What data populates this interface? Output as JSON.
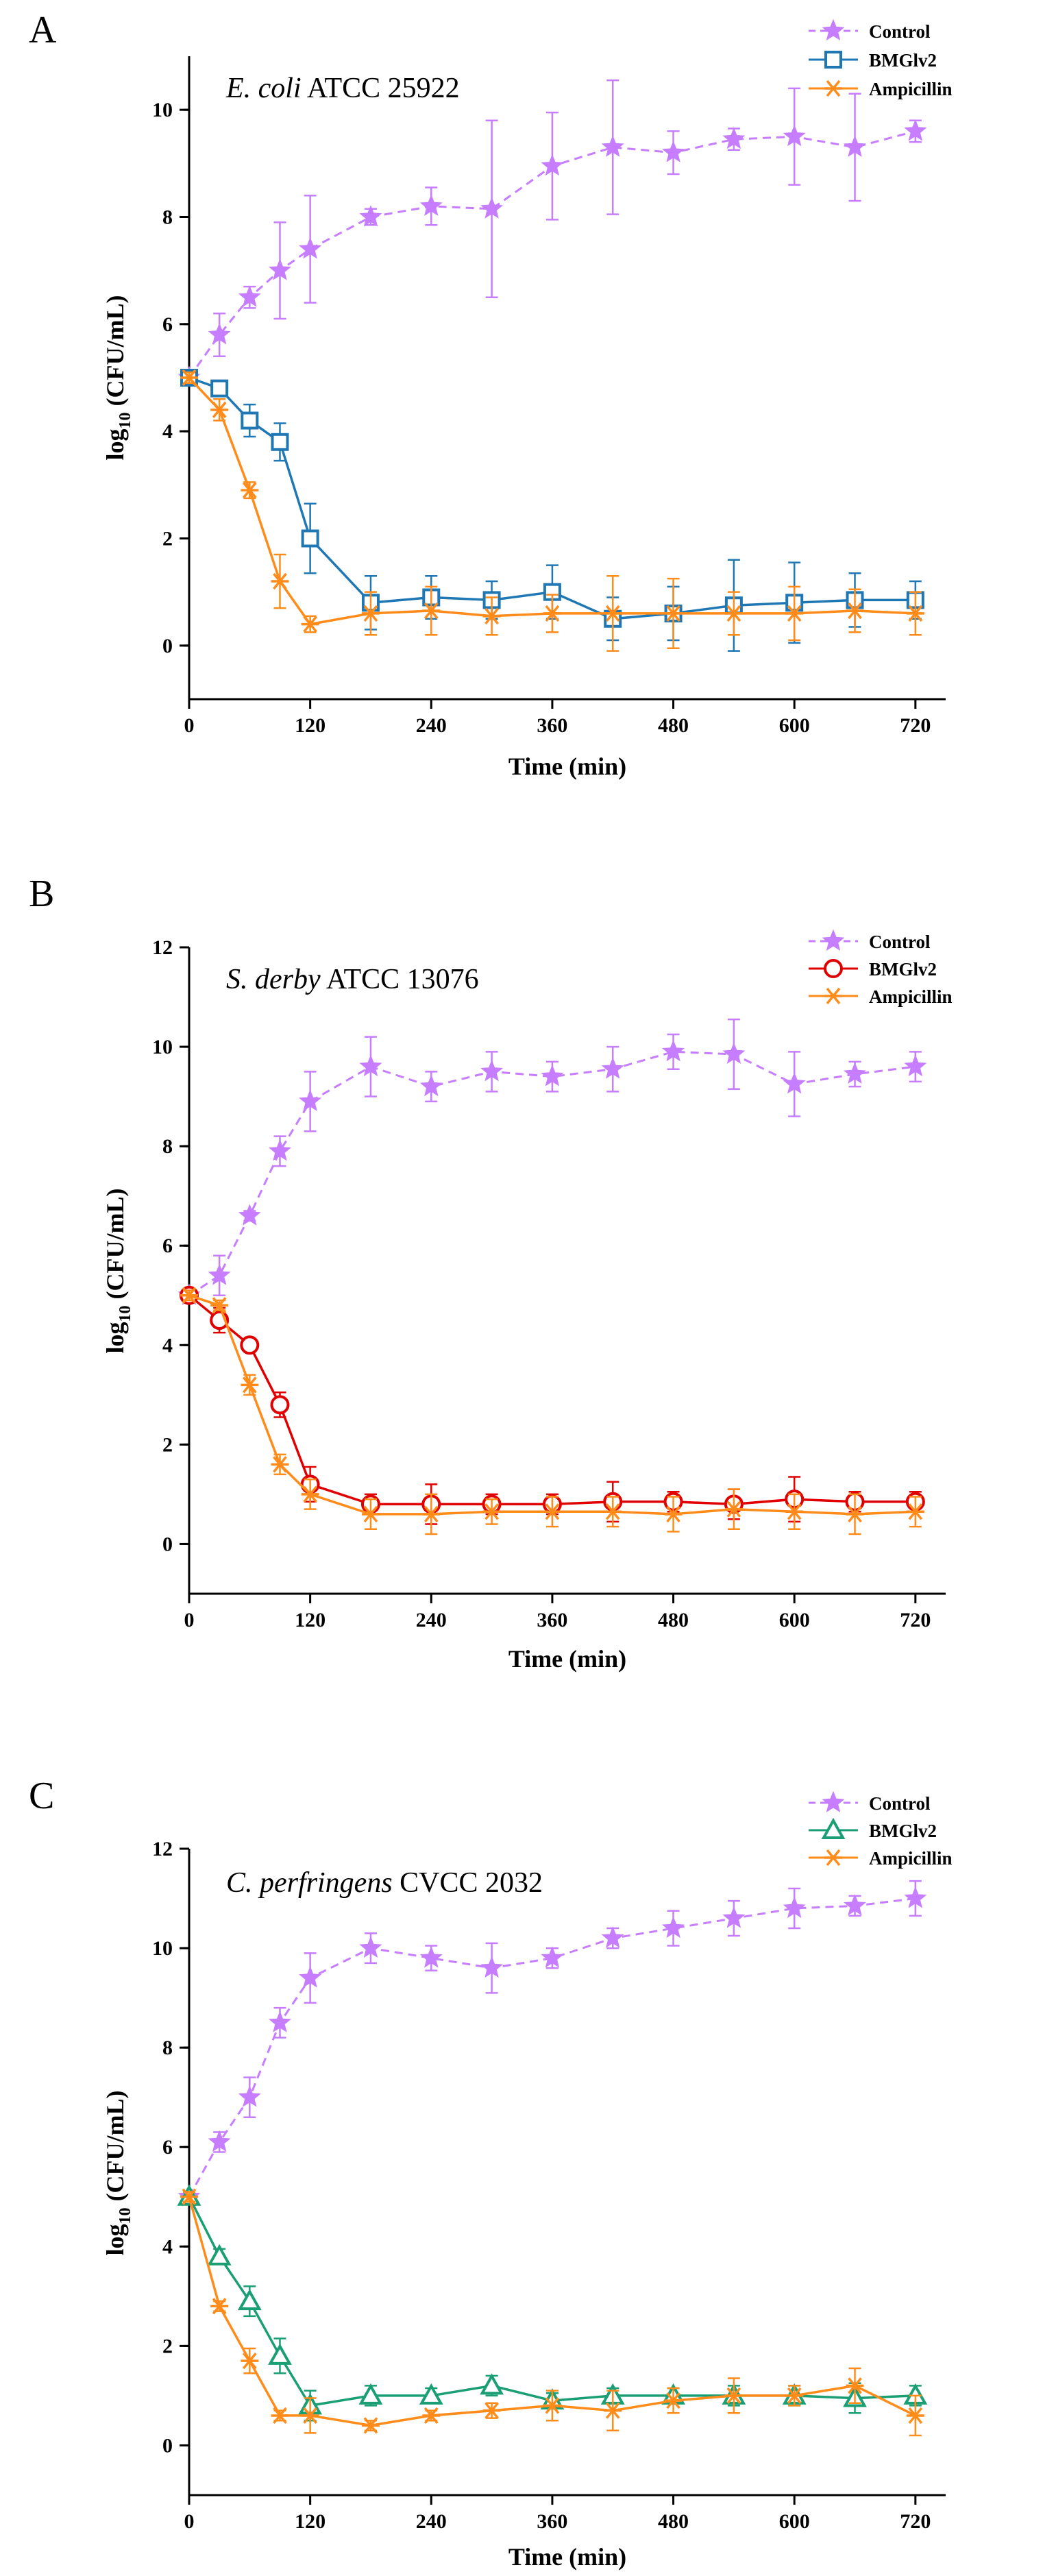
{
  "colors": {
    "control": "#c77dff",
    "bmglv2_a": "#1f77b4",
    "bmglv2_b": "#e00000",
    "bmglv2_c": "#1a9e74",
    "ampicillin": "#ff8c1a"
  },
  "chart_data": [
    {
      "panel": "A",
      "type": "line",
      "title_italic": "E. coli",
      "title_rest": " ATCC 25922",
      "xlabel": "Time (min)",
      "ylabel_prefix": "log",
      "ylabel_sub": "10",
      "ylabel_suffix": " (CFU/mL)",
      "xlim": [
        0,
        750
      ],
      "ylim": [
        -1,
        11
      ],
      "xticks": [
        0,
        120,
        240,
        360,
        480,
        600,
        720
      ],
      "yticks": [
        0,
        2,
        4,
        6,
        8,
        10
      ],
      "legend_position": "top-right",
      "series": [
        {
          "name": "Control",
          "marker": "star",
          "dash": true,
          "color_key": "control",
          "x": [
            0,
            30,
            60,
            90,
            120,
            180,
            240,
            300,
            360,
            420,
            480,
            540,
            600,
            660,
            720
          ],
          "y": [
            5.0,
            5.8,
            6.5,
            7.0,
            7.4,
            8.0,
            8.2,
            8.15,
            8.95,
            9.3,
            9.2,
            9.45,
            9.5,
            9.3,
            9.6
          ],
          "err": [
            0.1,
            0.4,
            0.2,
            0.9,
            1.0,
            0.15,
            0.35,
            1.65,
            1.0,
            1.25,
            0.4,
            0.2,
            0.9,
            1.0,
            0.2
          ]
        },
        {
          "name": "BMGlv2",
          "marker": "square",
          "dash": false,
          "color_key": "bmglv2_a",
          "x": [
            0,
            30,
            60,
            90,
            120,
            180,
            240,
            300,
            360,
            420,
            480,
            540,
            600,
            660,
            720
          ],
          "y": [
            5.0,
            4.8,
            4.2,
            3.8,
            2.0,
            0.8,
            0.9,
            0.85,
            1.0,
            0.5,
            0.6,
            0.75,
            0.8,
            0.85,
            0.85
          ],
          "err": [
            0.1,
            0.1,
            0.3,
            0.35,
            0.65,
            0.5,
            0.4,
            0.35,
            0.5,
            0.4,
            0.5,
            0.85,
            0.75,
            0.5,
            0.35
          ]
        },
        {
          "name": "Ampicillin",
          "marker": "asterisk",
          "dash": false,
          "color_key": "ampicillin",
          "x": [
            0,
            30,
            60,
            90,
            120,
            180,
            240,
            300,
            360,
            420,
            480,
            540,
            600,
            660,
            720
          ],
          "y": [
            5.0,
            4.4,
            2.9,
            1.2,
            0.4,
            0.6,
            0.65,
            0.55,
            0.6,
            0.6,
            0.6,
            0.6,
            0.6,
            0.65,
            0.6
          ],
          "err": [
            0.1,
            0.2,
            0.15,
            0.5,
            0.15,
            0.4,
            0.45,
            0.35,
            0.35,
            0.7,
            0.65,
            0.4,
            0.5,
            0.4,
            0.4
          ]
        }
      ]
    },
    {
      "panel": "B",
      "type": "line",
      "title_italic": "S. derby",
      "title_rest": " ATCC 13076",
      "xlabel": "Time (min)",
      "ylabel_prefix": "log",
      "ylabel_sub": "10",
      "ylabel_suffix": " (CFU/mL)",
      "xlim": [
        0,
        750
      ],
      "ylim": [
        -1,
        12
      ],
      "xticks": [
        0,
        120,
        240,
        360,
        480,
        600,
        720
      ],
      "yticks": [
        0,
        2,
        4,
        6,
        8,
        10,
        12
      ],
      "legend_position": "top-right",
      "series": [
        {
          "name": "Control",
          "marker": "star",
          "dash": true,
          "color_key": "control",
          "x": [
            0,
            30,
            60,
            90,
            120,
            180,
            240,
            300,
            360,
            420,
            480,
            540,
            600,
            660,
            720
          ],
          "y": [
            5.0,
            5.4,
            6.6,
            7.9,
            8.9,
            9.6,
            9.2,
            9.5,
            9.4,
            9.55,
            9.9,
            9.85,
            9.25,
            9.45,
            9.6
          ],
          "err": [
            0.1,
            0.4,
            0.1,
            0.3,
            0.6,
            0.6,
            0.3,
            0.4,
            0.3,
            0.45,
            0.35,
            0.7,
            0.65,
            0.25,
            0.3
          ]
        },
        {
          "name": "BMGlv2",
          "marker": "circle",
          "dash": false,
          "color_key": "bmglv2_b",
          "x": [
            0,
            30,
            60,
            90,
            120,
            180,
            240,
            300,
            360,
            420,
            480,
            540,
            600,
            660,
            720
          ],
          "y": [
            5.0,
            4.5,
            4.0,
            2.8,
            1.2,
            0.8,
            0.8,
            0.8,
            0.8,
            0.85,
            0.85,
            0.8,
            0.9,
            0.85,
            0.85
          ],
          "err": [
            0.1,
            0.25,
            0.1,
            0.25,
            0.35,
            0.2,
            0.4,
            0.2,
            0.2,
            0.4,
            0.2,
            0.3,
            0.45,
            0.2,
            0.2
          ]
        },
        {
          "name": "Ampicillin",
          "marker": "asterisk",
          "dash": false,
          "color_key": "ampicillin",
          "x": [
            0,
            30,
            60,
            90,
            120,
            180,
            240,
            300,
            360,
            420,
            480,
            540,
            600,
            660,
            720
          ],
          "y": [
            5.0,
            4.8,
            3.2,
            1.6,
            1.0,
            0.6,
            0.6,
            0.65,
            0.65,
            0.65,
            0.6,
            0.7,
            0.65,
            0.6,
            0.65
          ],
          "err": [
            0.1,
            0.1,
            0.2,
            0.2,
            0.3,
            0.3,
            0.4,
            0.25,
            0.3,
            0.3,
            0.35,
            0.4,
            0.35,
            0.4,
            0.3
          ]
        }
      ]
    },
    {
      "panel": "C",
      "type": "line",
      "title_italic": "C. perfringens",
      "title_rest": " CVCC 2032",
      "xlabel": "Time (min)",
      "ylabel_prefix": "log",
      "ylabel_sub": "10",
      "ylabel_suffix": " (CFU/mL)",
      "xlim": [
        0,
        750
      ],
      "ylim": [
        -1,
        12
      ],
      "xticks": [
        0,
        120,
        240,
        360,
        480,
        600,
        720
      ],
      "yticks": [
        0,
        2,
        4,
        6,
        8,
        10,
        12
      ],
      "legend_position": "top-right",
      "series": [
        {
          "name": "Control",
          "marker": "star",
          "dash": true,
          "color_key": "control",
          "x": [
            0,
            30,
            60,
            90,
            120,
            180,
            240,
            300,
            360,
            420,
            480,
            540,
            600,
            660,
            720
          ],
          "y": [
            5.0,
            6.1,
            7.0,
            8.5,
            9.4,
            10.0,
            9.8,
            9.6,
            9.8,
            10.2,
            10.4,
            10.6,
            10.8,
            10.85,
            11.0
          ],
          "err": [
            0.1,
            0.2,
            0.4,
            0.3,
            0.5,
            0.3,
            0.25,
            0.5,
            0.2,
            0.2,
            0.35,
            0.35,
            0.4,
            0.2,
            0.35
          ]
        },
        {
          "name": "BMGlv2",
          "marker": "triangle",
          "dash": false,
          "color_key": "bmglv2_c",
          "x": [
            0,
            30,
            60,
            90,
            120,
            180,
            240,
            300,
            360,
            420,
            480,
            540,
            600,
            660,
            720
          ],
          "y": [
            5.0,
            3.8,
            2.9,
            1.8,
            0.8,
            1.0,
            1.0,
            1.2,
            0.9,
            1.0,
            1.0,
            1.0,
            1.0,
            0.95,
            1.0
          ],
          "err": [
            0.1,
            0.15,
            0.3,
            0.35,
            0.3,
            0.2,
            0.15,
            0.2,
            0.15,
            0.15,
            0.15,
            0.2,
            0.2,
            0.3,
            0.2
          ]
        },
        {
          "name": "Ampicillin",
          "marker": "asterisk",
          "dash": false,
          "color_key": "ampicillin",
          "x": [
            0,
            30,
            60,
            90,
            120,
            180,
            240,
            300,
            360,
            420,
            480,
            540,
            600,
            660,
            720
          ],
          "y": [
            5.0,
            2.8,
            1.7,
            0.6,
            0.6,
            0.4,
            0.6,
            0.7,
            0.8,
            0.7,
            0.9,
            1.0,
            1.0,
            1.2,
            0.6
          ],
          "err": [
            0.1,
            0.1,
            0.25,
            0.1,
            0.35,
            0.1,
            0.1,
            0.15,
            0.3,
            0.4,
            0.25,
            0.35,
            0.2,
            0.35,
            0.4
          ]
        }
      ]
    }
  ]
}
